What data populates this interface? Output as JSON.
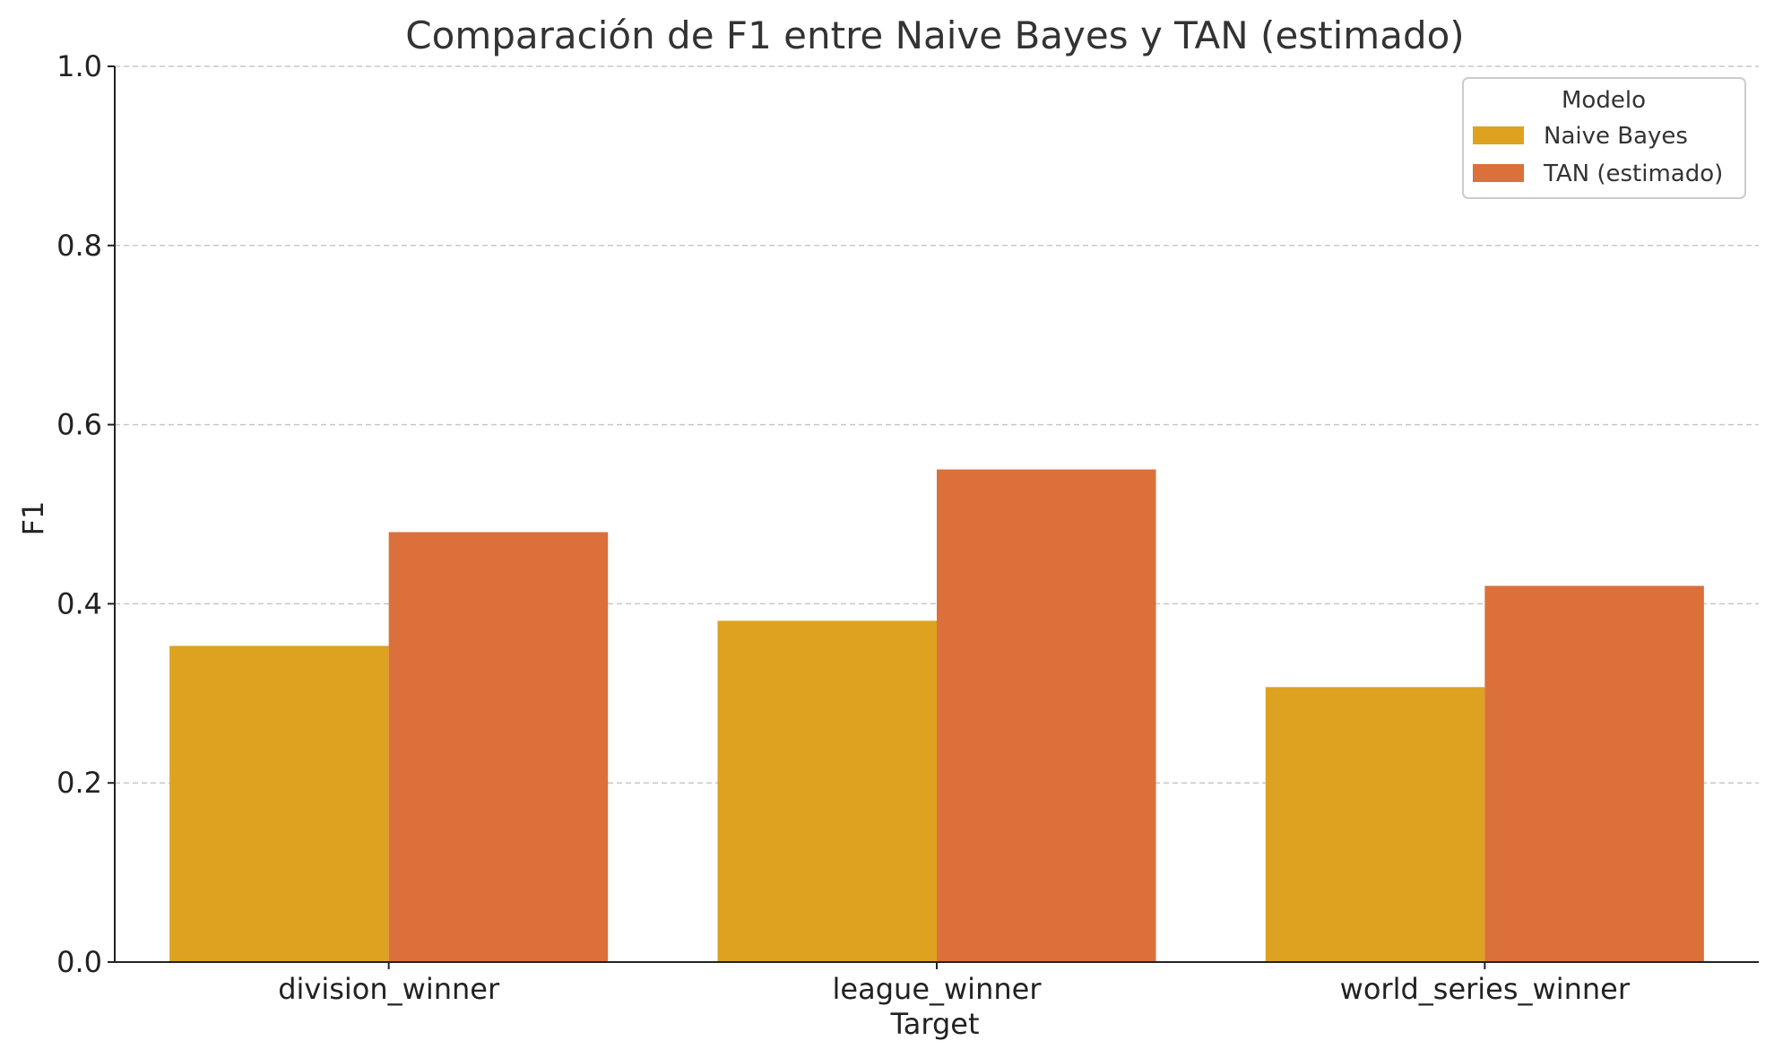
{
  "chart_data": {
    "type": "bar",
    "title": "Comparación de F1 entre Naive Bayes y TAN (estimado)",
    "xlabel": "Target",
    "ylabel": "F1",
    "categories": [
      "division_winner",
      "league_winner",
      "world_series_winner"
    ],
    "series": [
      {
        "name": "Naive Bayes",
        "values": [
          0.353,
          0.381,
          0.307
        ],
        "color": "#DDA220"
      },
      {
        "name": "TAN (estimado)",
        "values": [
          0.48,
          0.55,
          0.42
        ],
        "color": "#DB703B"
      }
    ],
    "ylim": [
      0,
      1.0
    ],
    "yticks": [
      "0.0",
      "0.2",
      "0.4",
      "0.6",
      "0.8",
      "1.0"
    ],
    "grid": "y, dashed",
    "legend": {
      "title": "Modelo",
      "position": "top-right"
    }
  }
}
